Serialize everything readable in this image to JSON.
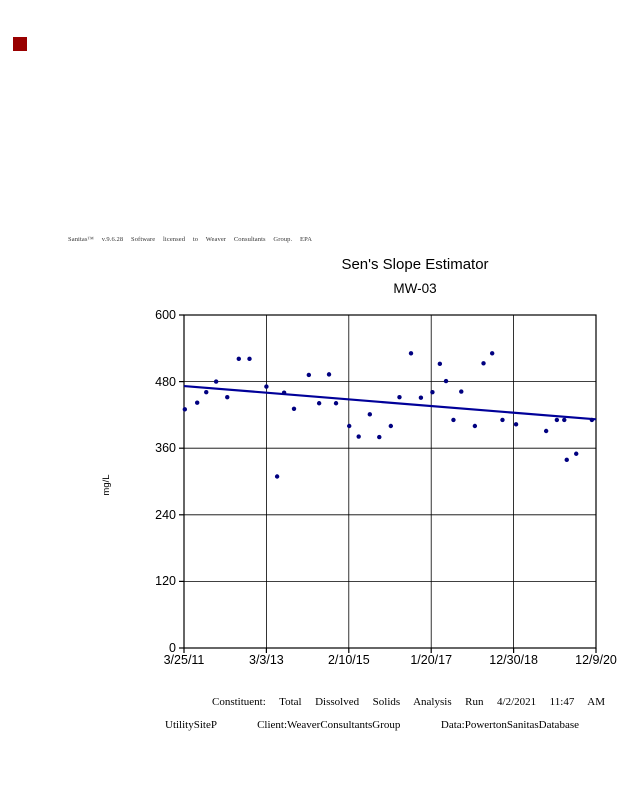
{
  "indicator": {
    "color": "#990000",
    "meaning": "status-flag"
  },
  "license_line": "Sanitas™ v.9.6.28 Software licensed to Weaver Consultants Group. EPA",
  "chart_data": {
    "type": "scatter",
    "title": "Sen's Slope Estimator",
    "subtitle": "MW-03",
    "ylabel": "mg/L",
    "xlabel": "",
    "ylim": [
      0,
      600
    ],
    "yticks": [
      0,
      120,
      240,
      360,
      480,
      600
    ],
    "xtick_labels": [
      "3/25/11",
      "3/3/13",
      "2/10/15",
      "1/20/17",
      "12/30/18",
      "12/9/20"
    ],
    "grid": true,
    "legend": "none",
    "point_color": "#000080",
    "trend_color": "#000099",
    "points_note": "x is fraction of time axis from 3/25/11 (0) to 12/9/20 (1); y in mg/L",
    "points": [
      {
        "x": 0.002,
        "y": 430
      },
      {
        "x": 0.032,
        "y": 442
      },
      {
        "x": 0.054,
        "y": 461
      },
      {
        "x": 0.078,
        "y": 480
      },
      {
        "x": 0.105,
        "y": 452
      },
      {
        "x": 0.133,
        "y": 521
      },
      {
        "x": 0.159,
        "y": 521
      },
      {
        "x": 0.2,
        "y": 471
      },
      {
        "x": 0.226,
        "y": 309
      },
      {
        "x": 0.243,
        "y": 460
      },
      {
        "x": 0.267,
        "y": 431
      },
      {
        "x": 0.303,
        "y": 492
      },
      {
        "x": 0.328,
        "y": 441
      },
      {
        "x": 0.352,
        "y": 493
      },
      {
        "x": 0.369,
        "y": 441
      },
      {
        "x": 0.401,
        "y": 400
      },
      {
        "x": 0.424,
        "y": 381
      },
      {
        "x": 0.451,
        "y": 421
      },
      {
        "x": 0.474,
        "y": 380
      },
      {
        "x": 0.502,
        "y": 400
      },
      {
        "x": 0.523,
        "y": 452
      },
      {
        "x": 0.551,
        "y": 531
      },
      {
        "x": 0.575,
        "y": 451
      },
      {
        "x": 0.603,
        "y": 461
      },
      {
        "x": 0.621,
        "y": 512
      },
      {
        "x": 0.636,
        "y": 481
      },
      {
        "x": 0.654,
        "y": 411
      },
      {
        "x": 0.673,
        "y": 462
      },
      {
        "x": 0.706,
        "y": 400
      },
      {
        "x": 0.727,
        "y": 513
      },
      {
        "x": 0.748,
        "y": 531
      },
      {
        "x": 0.773,
        "y": 411
      },
      {
        "x": 0.806,
        "y": 403
      },
      {
        "x": 0.879,
        "y": 391
      },
      {
        "x": 0.905,
        "y": 411
      },
      {
        "x": 0.923,
        "y": 411
      },
      {
        "x": 0.929,
        "y": 339
      },
      {
        "x": 0.952,
        "y": 350
      },
      {
        "x": 0.99,
        "y": 411
      }
    ],
    "trend_line": {
      "x0": 0,
      "y0": 472,
      "x1": 1,
      "y1": 412
    }
  },
  "footer": {
    "line1": "Constituent: Total Dissolved Solids Analysis Run 4/2/2021 11:47 AM",
    "line2": "UtilitySiteP Client:WeaverConsultantsGroup Data:PowertonSanitasDatabase"
  }
}
